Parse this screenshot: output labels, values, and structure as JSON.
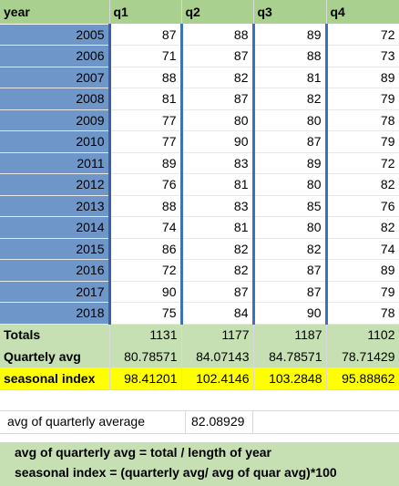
{
  "headers": {
    "year": "year",
    "q1": "q1",
    "q2": "q2",
    "q3": "q3",
    "q4": "q4"
  },
  "rows": [
    {
      "year": "2005",
      "q1": "87",
      "q2": "88",
      "q3": "89",
      "q4": "72"
    },
    {
      "year": "2006",
      "q1": "71",
      "q2": "87",
      "q3": "88",
      "q4": "73"
    },
    {
      "year": "2007",
      "q1": "88",
      "q2": "82",
      "q3": "81",
      "q4": "89"
    },
    {
      "year": "2008",
      "q1": "81",
      "q2": "87",
      "q3": "82",
      "q4": "79"
    },
    {
      "year": "2009",
      "q1": "77",
      "q2": "80",
      "q3": "80",
      "q4": "78"
    },
    {
      "year": "2010",
      "q1": "77",
      "q2": "90",
      "q3": "87",
      "q4": "79"
    },
    {
      "year": "2011",
      "q1": "89",
      "q2": "83",
      "q3": "89",
      "q4": "72"
    },
    {
      "year": "2012",
      "q1": "76",
      "q2": "81",
      "q3": "80",
      "q4": "82"
    },
    {
      "year": "2013",
      "q1": "88",
      "q2": "83",
      "q3": "85",
      "q4": "76"
    },
    {
      "year": "2014",
      "q1": "74",
      "q2": "81",
      "q3": "80",
      "q4": "82"
    },
    {
      "year": "2015",
      "q1": "86",
      "q2": "82",
      "q3": "82",
      "q4": "74"
    },
    {
      "year": "2016",
      "q1": "72",
      "q2": "82",
      "q3": "87",
      "q4": "89"
    },
    {
      "year": "2017",
      "q1": "90",
      "q2": "87",
      "q3": "87",
      "q4": "79"
    },
    {
      "year": "2018",
      "q1": "75",
      "q2": "84",
      "q3": "90",
      "q4": "78"
    }
  ],
  "totals": {
    "label": "Totals",
    "q1": "1131",
    "q2": "1177",
    "q3": "1187",
    "q4": "1102"
  },
  "quarterly_avg": {
    "label": "Quartely avg",
    "q1": "80.78571",
    "q2": "84.07143",
    "q3": "84.78571",
    "q4": "78.71429"
  },
  "seasonal_index": {
    "label": "seasonal index",
    "q1": "98.41201",
    "q2": "102.4146",
    "q3": "103.2848",
    "q4": "95.88862"
  },
  "avg_of_quarterly": {
    "label": "avg of quarterly average",
    "value": "82.08929"
  },
  "notes": {
    "line1": "avg of quarterly avg = total / length of year",
    "line2": "seasonal index = (quarterly avg/ avg of quar avg)*100"
  },
  "colors": {
    "header_green": "#a9d08e",
    "light_green": "#c6e0b4",
    "year_blue": "#6f96c9",
    "highlight_yellow": "#ffff00"
  }
}
